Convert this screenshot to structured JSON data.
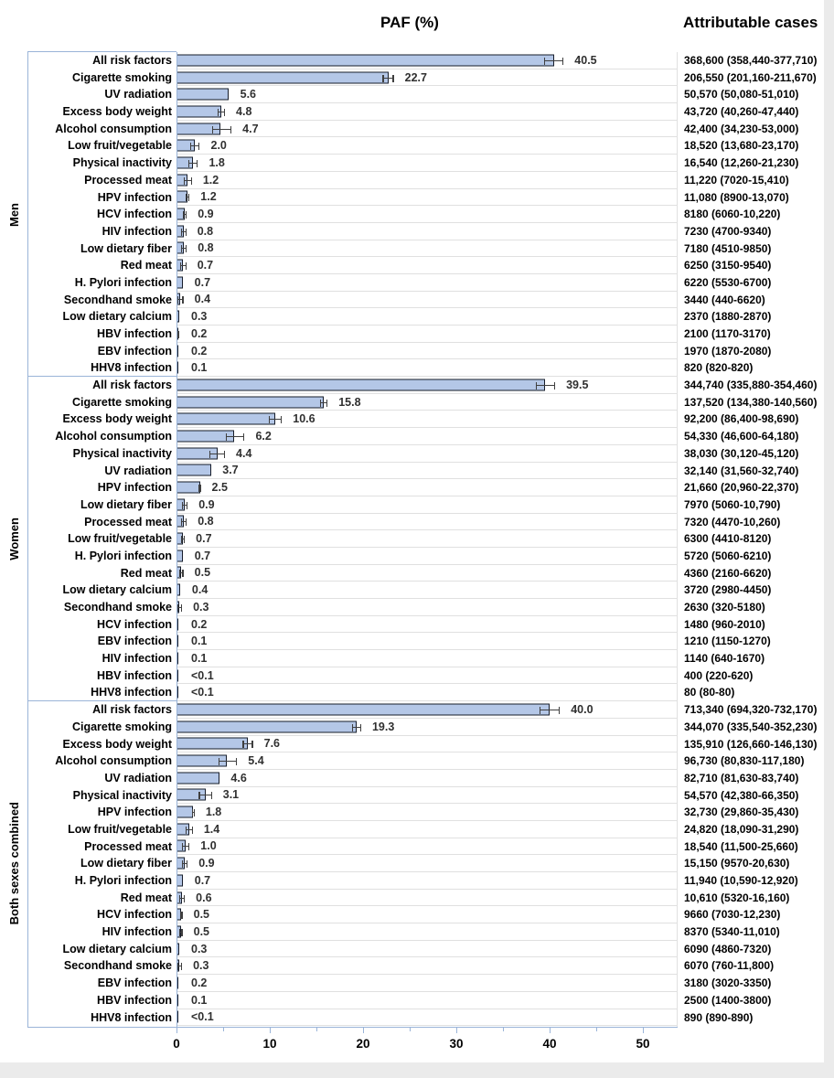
{
  "header": {
    "title": "PAF (%)",
    "cases_title": "Attributable cases"
  },
  "colors": {
    "bar_fill": "#b4c7e7",
    "bar_border": "#161c2a",
    "accent_blue": "#9ab4d8",
    "gridline": "#e0e0e0",
    "value_text": "#303030",
    "text": "#000000"
  },
  "chart_data": {
    "type": "bar",
    "orientation": "horizontal",
    "title": "PAF (%)",
    "cases_column_title": "Attributable cases",
    "xlim": [
      0,
      50
    ],
    "major_ticks": [
      0,
      10,
      20,
      30,
      40,
      50
    ],
    "minor_ticks": [
      5,
      15,
      25,
      35,
      45
    ],
    "grid": "row gridlines on, right of axis only",
    "groups": [
      {
        "name": "Men",
        "rows": [
          {
            "label": "All risk factors",
            "paf_label": "40.5",
            "paf": 40.5,
            "lo": 39.4,
            "hi": 41.5,
            "cases": "368,600 (358,440-377,710)"
          },
          {
            "label": "Cigarette smoking",
            "paf_label": "22.7",
            "paf": 22.7,
            "lo": 22.1,
            "hi": 23.3,
            "cases": "206,550 (201,160-211,670)"
          },
          {
            "label": "UV radiation",
            "paf_label": "5.6",
            "paf": 5.6,
            "lo": 5.55,
            "hi": 5.65,
            "cases": "50,570 (50,080-51,010)"
          },
          {
            "label": "Excess body weight",
            "paf_label": "4.8",
            "paf": 4.8,
            "lo": 4.4,
            "hi": 5.2,
            "cases": "43,720 (40,260-47,440)"
          },
          {
            "label": "Alcohol consumption",
            "paf_label": "4.7",
            "paf": 4.7,
            "lo": 3.8,
            "hi": 5.9,
            "cases": "42,400 (34,230-53,000)"
          },
          {
            "label": "Low fruit/vegetable",
            "paf_label": "2.0",
            "paf": 2.0,
            "lo": 1.5,
            "hi": 2.5,
            "cases": "18,520 (13,680-23,170)"
          },
          {
            "label": "Physical inactivity",
            "paf_label": "1.8",
            "paf": 1.8,
            "lo": 1.3,
            "hi": 2.3,
            "cases": "16,540 (12,260-21,230)"
          },
          {
            "label": "Processed meat",
            "paf_label": "1.2",
            "paf": 1.2,
            "lo": 0.75,
            "hi": 1.65,
            "cases": "11,220 (7020-15,410)"
          },
          {
            "label": "HPV infection",
            "paf_label": "1.2",
            "paf": 1.2,
            "lo": 0.95,
            "hi": 1.4,
            "cases": "11,080 (8900-13,070)"
          },
          {
            "label": "HCV infection",
            "paf_label": "0.9",
            "paf": 0.9,
            "lo": 0.65,
            "hi": 1.1,
            "cases": "8180 (6060-10,220)"
          },
          {
            "label": "HIV infection",
            "paf_label": "0.8",
            "paf": 0.8,
            "lo": 0.5,
            "hi": 1.05,
            "cases": "7230 (4700-9340)"
          },
          {
            "label": "Low dietary fiber",
            "paf_label": "0.8",
            "paf": 0.8,
            "lo": 0.5,
            "hi": 1.1,
            "cases": "7180 (4510-9850)"
          },
          {
            "label": "Red meat",
            "paf_label": "0.7",
            "paf": 0.7,
            "lo": 0.35,
            "hi": 1.05,
            "cases": "6250 (3150-9540)"
          },
          {
            "label": "H. Pylori infection",
            "paf_label": "0.7",
            "paf": 0.7,
            "lo": 0.62,
            "hi": 0.75,
            "cases": "6220 (5530-6700)"
          },
          {
            "label": "Secondhand smoke",
            "paf_label": "0.4",
            "paf": 0.4,
            "lo": 0.05,
            "hi": 0.75,
            "cases": "3440 (440-6620)"
          },
          {
            "label": "Low dietary calcium",
            "paf_label": "0.3",
            "paf": 0.3,
            "lo": 0.24,
            "hi": 0.36,
            "cases": "2370 (1880-2870)"
          },
          {
            "label": "HBV infection",
            "paf_label": "0.2",
            "paf": 0.2,
            "lo": 0.11,
            "hi": 0.3,
            "cases": "2100 (1170-3170)"
          },
          {
            "label": "EBV infection",
            "paf_label": "0.2",
            "paf": 0.2,
            "lo": 0.19,
            "hi": 0.21,
            "cases": "1970 (1870-2080)"
          },
          {
            "label": "HHV8 infection",
            "paf_label": "0.1",
            "paf": 0.1,
            "lo": 0.1,
            "hi": 0.1,
            "cases": "820 (820-820)"
          }
        ]
      },
      {
        "name": "Women",
        "rows": [
          {
            "label": "All risk factors",
            "paf_label": "39.5",
            "paf": 39.5,
            "lo": 38.5,
            "hi": 40.6,
            "cases": "344,740 (335,880-354,460)"
          },
          {
            "label": "Cigarette smoking",
            "paf_label": "15.8",
            "paf": 15.8,
            "lo": 15.4,
            "hi": 16.2,
            "cases": "137,520 (134,380-140,560)"
          },
          {
            "label": "Excess body weight",
            "paf_label": "10.6",
            "paf": 10.6,
            "lo": 9.9,
            "hi": 11.3,
            "cases": "92,200 (86,400-98,690)"
          },
          {
            "label": "Alcohol consumption",
            "paf_label": "6.2",
            "paf": 6.2,
            "lo": 5.3,
            "hi": 7.3,
            "cases": "54,330 (46,600-64,180)"
          },
          {
            "label": "Physical inactivity",
            "paf_label": "4.4",
            "paf": 4.4,
            "lo": 3.5,
            "hi": 5.2,
            "cases": "38,030 (30,120-45,120)"
          },
          {
            "label": "UV radiation",
            "paf_label": "3.7",
            "paf": 3.7,
            "lo": 3.65,
            "hi": 3.75,
            "cases": "32,140 (31,560-32,740)"
          },
          {
            "label": "HPV infection",
            "paf_label": "2.5",
            "paf": 2.5,
            "lo": 2.4,
            "hi": 2.6,
            "cases": "21,660 (20,960-22,370)"
          },
          {
            "label": "Low dietary fiber",
            "paf_label": "0.9",
            "paf": 0.9,
            "lo": 0.55,
            "hi": 1.2,
            "cases": "7970 (5060-10,790)"
          },
          {
            "label": "Processed meat",
            "paf_label": "0.8",
            "paf": 0.8,
            "lo": 0.5,
            "hi": 1.1,
            "cases": "7320 (4470-10,260)"
          },
          {
            "label": "Low fruit/vegetable",
            "paf_label": "0.7",
            "paf": 0.7,
            "lo": 0.5,
            "hi": 0.9,
            "cases": "6300 (4410-8120)"
          },
          {
            "label": "H. Pylori infection",
            "paf_label": "0.7",
            "paf": 0.7,
            "lo": 0.62,
            "hi": 0.76,
            "cases": "5720 (5060-6210)"
          },
          {
            "label": "Red meat",
            "paf_label": "0.5",
            "paf": 0.5,
            "lo": 0.25,
            "hi": 0.75,
            "cases": "4360 (2160-6620)"
          },
          {
            "label": "Low dietary calcium",
            "paf_label": "0.4",
            "paf": 0.4,
            "lo": 0.32,
            "hi": 0.48,
            "cases": "3720 (2980-4450)"
          },
          {
            "label": "Secondhand smoke",
            "paf_label": "0.3",
            "paf": 0.3,
            "lo": 0.05,
            "hi": 0.6,
            "cases": "2630 (320-5180)"
          },
          {
            "label": "HCV infection",
            "paf_label": "0.2",
            "paf": 0.2,
            "lo": 0.13,
            "hi": 0.27,
            "cases": "1480 (960-2010)"
          },
          {
            "label": "EBV infection",
            "paf_label": "0.1",
            "paf": 0.1,
            "lo": 0.1,
            "hi": 0.1,
            "cases": "1210 (1150-1270)"
          },
          {
            "label": "HIV infection",
            "paf_label": "0.1",
            "paf": 0.1,
            "lo": 0.06,
            "hi": 0.15,
            "cases": "1140 (640-1670)"
          },
          {
            "label": "HBV infection",
            "paf_label": "<0.1",
            "paf": 0.05,
            "lo": 0.03,
            "hi": 0.08,
            "cases": "400 (220-620)"
          },
          {
            "label": "HHV8 infection",
            "paf_label": "<0.1",
            "paf": 0.05,
            "lo": 0.05,
            "hi": 0.05,
            "cases": "80 (80-80)"
          }
        ]
      },
      {
        "name": "Both sexes combined",
        "rows": [
          {
            "label": "All risk factors",
            "paf_label": "40.0",
            "paf": 40.0,
            "lo": 38.9,
            "hi": 41.1,
            "cases": "713,340 (694,320-732,170)"
          },
          {
            "label": "Cigarette smoking",
            "paf_label": "19.3",
            "paf": 19.3,
            "lo": 18.8,
            "hi": 19.8,
            "cases": "344,070 (335,540-352,230)"
          },
          {
            "label": "Excess body weight",
            "paf_label": "7.6",
            "paf": 7.6,
            "lo": 7.1,
            "hi": 8.2,
            "cases": "135,910 (126,660-146,130)"
          },
          {
            "label": "Alcohol consumption",
            "paf_label": "5.4",
            "paf": 5.4,
            "lo": 4.5,
            "hi": 6.5,
            "cases": "96,730 (80,830-117,180)"
          },
          {
            "label": "UV radiation",
            "paf_label": "4.6",
            "paf": 4.6,
            "lo": 4.55,
            "hi": 4.65,
            "cases": "82,710 (81,630-83,740)"
          },
          {
            "label": "Physical inactivity",
            "paf_label": "3.1",
            "paf": 3.1,
            "lo": 2.4,
            "hi": 3.8,
            "cases": "54,570 (42,380-66,350)"
          },
          {
            "label": "HPV infection",
            "paf_label": "1.8",
            "paf": 1.8,
            "lo": 1.65,
            "hi": 1.95,
            "cases": "32,730 (29,860-35,430)"
          },
          {
            "label": "Low fruit/vegetable",
            "paf_label": "1.4",
            "paf": 1.4,
            "lo": 1.0,
            "hi": 1.75,
            "cases": "24,820 (18,090-31,290)"
          },
          {
            "label": "Processed meat",
            "paf_label": "1.0",
            "paf": 1.0,
            "lo": 0.6,
            "hi": 1.4,
            "cases": "18,540 (11,500-25,660)"
          },
          {
            "label": "Low dietary fiber",
            "paf_label": "0.9",
            "paf": 0.9,
            "lo": 0.55,
            "hi": 1.2,
            "cases": "15,150 (9570-20,630)"
          },
          {
            "label": "H. Pylori infection",
            "paf_label": "0.7",
            "paf": 0.7,
            "lo": 0.62,
            "hi": 0.76,
            "cases": "11,940 (10,590-12,920)"
          },
          {
            "label": "Red meat",
            "paf_label": "0.6",
            "paf": 0.6,
            "lo": 0.3,
            "hi": 0.9,
            "cases": "10,610 (5320-16,160)"
          },
          {
            "label": "HCV infection",
            "paf_label": "0.5",
            "paf": 0.5,
            "lo": 0.35,
            "hi": 0.65,
            "cases": "9660 (7030-12,230)"
          },
          {
            "label": "HIV infection",
            "paf_label": "0.5",
            "paf": 0.5,
            "lo": 0.3,
            "hi": 0.65,
            "cases": "8370 (5340-11,010)"
          },
          {
            "label": "Low dietary calcium",
            "paf_label": "0.3",
            "paf": 0.3,
            "lo": 0.24,
            "hi": 0.36,
            "cases": "6090 (4860-7320)"
          },
          {
            "label": "Secondhand smoke",
            "paf_label": "0.3",
            "paf": 0.3,
            "lo": 0.05,
            "hi": 0.6,
            "cases": "6070 (760-11,800)"
          },
          {
            "label": "EBV infection",
            "paf_label": "0.2",
            "paf": 0.2,
            "lo": 0.19,
            "hi": 0.21,
            "cases": "3180 (3020-3350)"
          },
          {
            "label": "HBV infection",
            "paf_label": "0.1",
            "paf": 0.1,
            "lo": 0.06,
            "hi": 0.15,
            "cases": "2500 (1400-3800)"
          },
          {
            "label": "HHV8 infection",
            "paf_label": "<0.1",
            "paf": 0.05,
            "lo": 0.05,
            "hi": 0.05,
            "cases": "890 (890-890)"
          }
        ]
      }
    ]
  }
}
